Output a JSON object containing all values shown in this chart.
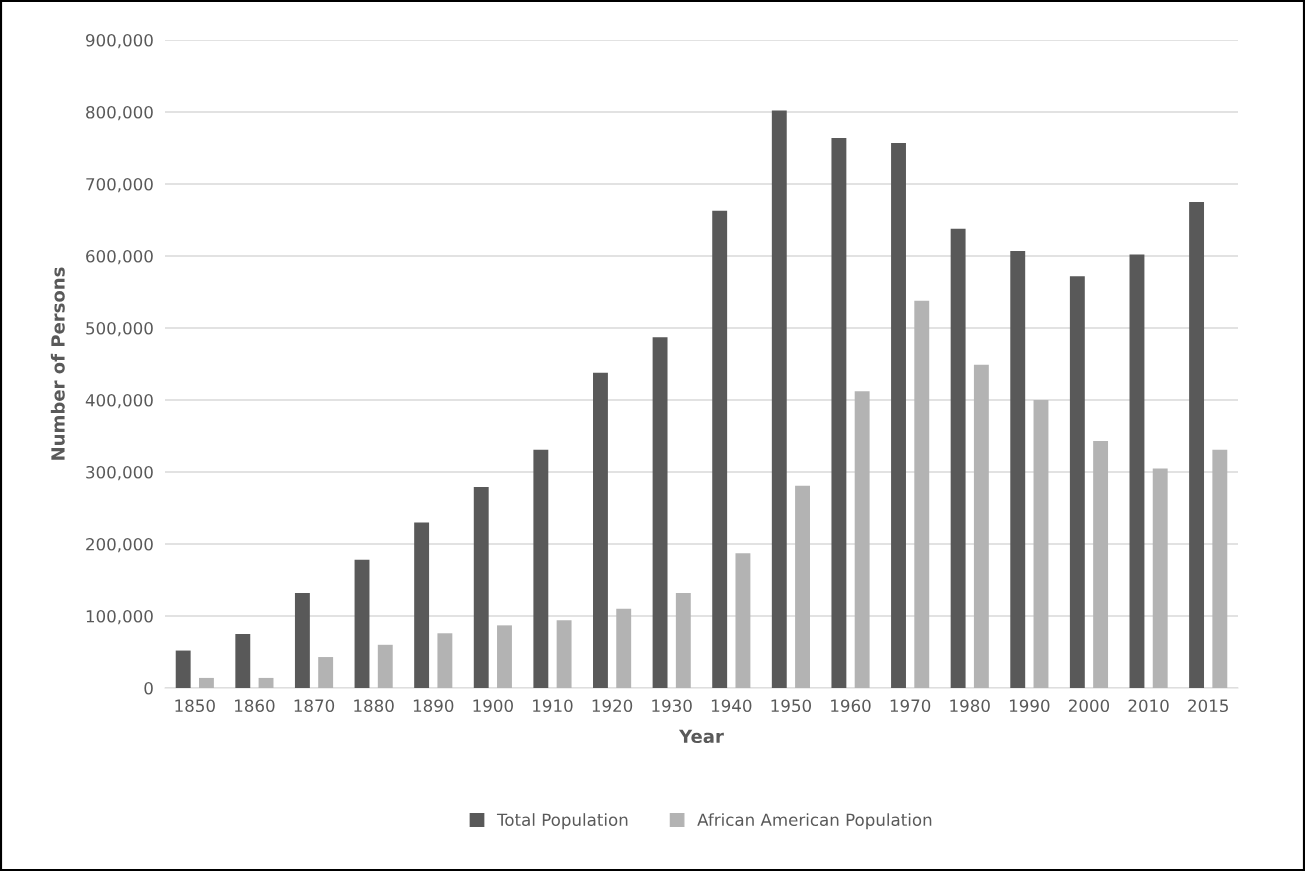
{
  "chart_data": {
    "type": "bar",
    "xlabel": "Year",
    "ylabel": "Number of Persons",
    "categories": [
      "1850",
      "1860",
      "1870",
      "1880",
      "1890",
      "1900",
      "1910",
      "1920",
      "1930",
      "1940",
      "1950",
      "1960",
      "1970",
      "1980",
      "1990",
      "2000",
      "2010",
      "2015"
    ],
    "series": [
      {
        "name": "Total Population",
        "color": "#595959",
        "values": [
          52000,
          75000,
          132000,
          178000,
          230000,
          279000,
          331000,
          438000,
          487000,
          663000,
          802000,
          764000,
          757000,
          638000,
          607000,
          572000,
          602000,
          675000
        ]
      },
      {
        "name": "African American Population",
        "color": "#b3b3b3",
        "values": [
          14000,
          14000,
          43000,
          60000,
          76000,
          87000,
          94000,
          110000,
          132000,
          187000,
          281000,
          412000,
          538000,
          449000,
          400000,
          343000,
          305000,
          331000
        ]
      }
    ],
    "ylim": [
      0,
      900000
    ],
    "yticks": [
      {
        "value": 0,
        "label": "0"
      },
      {
        "value": 100000,
        "label": "100,000"
      },
      {
        "value": 200000,
        "label": "200,000"
      },
      {
        "value": 300000,
        "label": "300,000"
      },
      {
        "value": 400000,
        "label": "400,000"
      },
      {
        "value": 500000,
        "label": "500,000"
      },
      {
        "value": 600000,
        "label": "600,000"
      },
      {
        "value": 700000,
        "label": "700,000"
      },
      {
        "value": 800000,
        "label": "800,000"
      },
      {
        "value": 900000,
        "label": "900,000"
      }
    ],
    "grid": "y",
    "legend": "bottom"
  }
}
